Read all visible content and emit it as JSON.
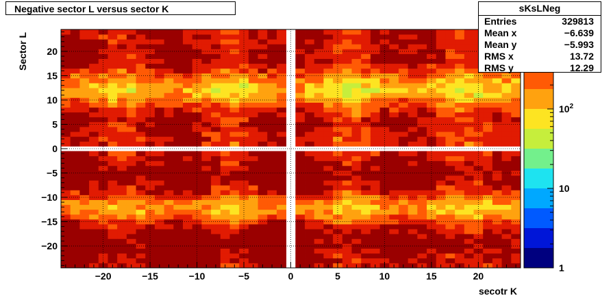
{
  "title": "Negative sector L versus sector K",
  "stats": {
    "name": "sKsLNeg",
    "rows": [
      {
        "label": "Entries",
        "value": "329813"
      },
      {
        "label": "Mean x",
        "value": "−6.639"
      },
      {
        "label": "Mean y",
        "value": "−5.993"
      },
      {
        "label": "RMS x",
        "value": "13.72"
      },
      {
        "label": "RMS y",
        "value": "12.29"
      }
    ]
  },
  "chart_data": {
    "type": "heatmap",
    "xlabel": "secotr K",
    "ylabel": "Sector L",
    "xlim": [
      -24.5,
      24.5
    ],
    "ylim": [
      -24.5,
      24.5
    ],
    "x_ticks": [
      {
        "value": -20,
        "label": "−20"
      },
      {
        "value": -15,
        "label": "−15"
      },
      {
        "value": -10,
        "label": "−10"
      },
      {
        "value": -5,
        "label": "−5"
      },
      {
        "value": 0,
        "label": "0"
      },
      {
        "value": 5,
        "label": "5"
      },
      {
        "value": 10,
        "label": "10"
      },
      {
        "value": 15,
        "label": "15"
      },
      {
        "value": 20,
        "label": "20"
      }
    ],
    "y_ticks": [
      {
        "value": 20,
        "label": "20"
      },
      {
        "value": 15,
        "label": "15"
      },
      {
        "value": 10,
        "label": "10"
      },
      {
        "value": 5,
        "label": "5"
      },
      {
        "value": 0,
        "label": "0"
      },
      {
        "value": -5,
        "label": "−5"
      },
      {
        "value": -10,
        "label": "−10"
      },
      {
        "value": -15,
        "label": "−15"
      },
      {
        "value": -20,
        "label": "−20"
      }
    ],
    "z_log": true,
    "z_range": [
      1,
      1000
    ],
    "z_ticks": [
      {
        "value": 1,
        "label": "1"
      },
      {
        "value": 10,
        "label": "10"
      },
      {
        "value": 100,
        "label": "10^2"
      }
    ],
    "grid": true,
    "palette": [
      "#00007f",
      "#0016d8",
      "#005aff",
      "#00a8ff",
      "#1ee3f0",
      "#73f08c",
      "#c6ee3c",
      "#fde422",
      "#ffa20f",
      "#ff5a05",
      "#e11b02",
      "#9a0000"
    ],
    "cluster_x_centers": [
      -24,
      -12,
      -2,
      2,
      12,
      24
    ],
    "cluster_x_widths": [
      3.8,
      3.8,
      2.2,
      2.2,
      3.8,
      3.8
    ],
    "cluster_x_weights": [
      1.0,
      1.05,
      0.9,
      0.75,
      0.95,
      0.7
    ],
    "cluster_y_centers": [
      -24,
      -19.5,
      -5,
      5,
      19.5,
      24
    ],
    "cluster_y_widths": [
      1.3,
      3.2,
      3.2,
      3.2,
      3.2,
      1.3
    ],
    "cluster_y_weights": [
      0.45,
      1.3,
      1.25,
      0.85,
      0.85,
      0.45
    ],
    "peak_counts": 950,
    "min_counts_shown": 1
  }
}
